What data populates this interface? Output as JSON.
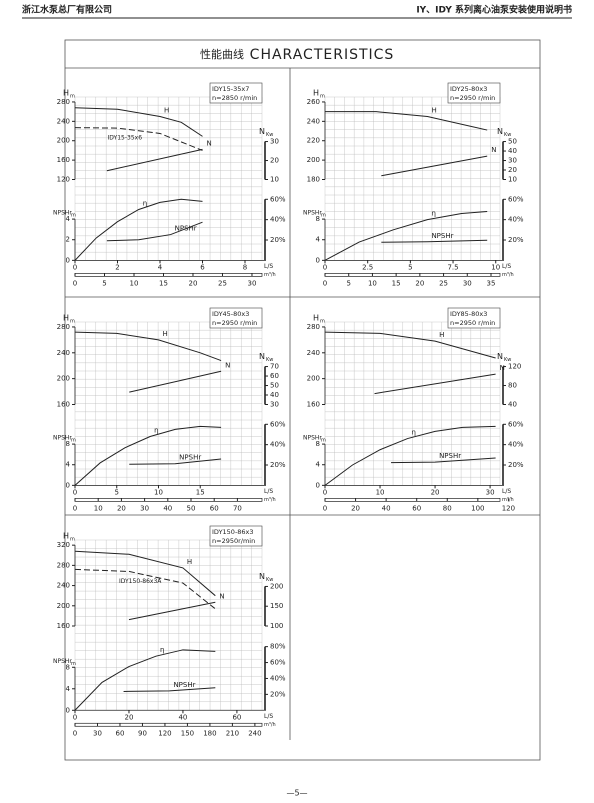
{
  "header": {
    "left": "浙江水泵总厂有限公司",
    "right": "IY、IDY 系列离心油泵安装使用说明书"
  },
  "title": {
    "cn": "性能曲线",
    "en": "CHARACTERISTICS"
  },
  "footer": "—5—",
  "chart_data": [
    {
      "type": "line",
      "model": "IDY15-35x7",
      "speed": "n=2850 r/min",
      "color": "#222",
      "h_title": "H",
      "h_unit": "m",
      "n_title": "N",
      "n_unit": "Kw",
      "npsh_title": "NPSHr",
      "npsh_unit": "m",
      "q_title": "L/S",
      "q2_title": "m³/h",
      "hlim": [
        120,
        280
      ],
      "hticks": [
        120,
        160,
        200,
        240,
        280
      ],
      "nlim": [
        10,
        30
      ],
      "nticks": [
        10,
        20,
        30
      ],
      "etalim": [
        0,
        60
      ],
      "etaticks": [
        {
          "value": 20,
          "label": "20%"
        },
        {
          "value": 40,
          "label": "40%"
        },
        {
          "value": 60,
          "label": "60%"
        }
      ],
      "npshlim": [
        0,
        4
      ],
      "npshticks": [
        0,
        2,
        4
      ],
      "xlim": [
        0,
        8.8
      ],
      "xticks": [
        0,
        2,
        4,
        6,
        8
      ],
      "x2lim": [
        0,
        31.7
      ],
      "x2ticks": [
        0,
        5,
        10,
        15,
        20,
        25,
        30
      ],
      "series": [
        {
          "name": "H",
          "axis": "h",
          "x": [
            0,
            2,
            4,
            5,
            6
          ],
          "values": [
            268,
            265,
            250,
            238,
            209
          ]
        },
        {
          "name": "IDY15-35x6",
          "axis": "h",
          "dashed": true,
          "x": [
            0,
            2,
            4,
            6
          ],
          "values": [
            227,
            226,
            215,
            180
          ]
        },
        {
          "name": "N",
          "axis": "n",
          "x": [
            1.5,
            6
          ],
          "values": [
            14.6,
            25.9
          ]
        },
        {
          "name": "η",
          "axis": "eta",
          "x": [
            0,
            1,
            2,
            3,
            4,
            5,
            6
          ],
          "values": [
            0,
            22,
            38,
            50,
            57,
            60,
            58
          ]
        },
        {
          "name": "NPSHr",
          "axis": "npsh",
          "x": [
            1.5,
            3,
            4.5,
            6
          ],
          "values": [
            1.9,
            2.0,
            2.5,
            3.7
          ]
        }
      ]
    },
    {
      "type": "line",
      "model": "IDY25-80x3",
      "speed": "n=2950 r/min",
      "color": "#222",
      "h_title": "H",
      "h_unit": "m",
      "n_title": "N",
      "n_unit": "Kw",
      "npsh_title": "NPSHr",
      "npsh_unit": "m",
      "q_title": "L/S",
      "q2_title": "m³/h",
      "hlim": [
        180,
        260
      ],
      "hticks": [
        180,
        200,
        220,
        240,
        260
      ],
      "nlim": [
        10,
        50
      ],
      "nticks": [
        10,
        20,
        30,
        40,
        50
      ],
      "etalim": [
        0,
        60
      ],
      "etaticks": [
        {
          "value": 20,
          "label": "20%"
        },
        {
          "value": 40,
          "label": "40%"
        },
        {
          "value": 60,
          "label": "60%"
        }
      ],
      "npshlim": [
        0,
        8
      ],
      "npshticks": [
        0,
        4,
        8
      ],
      "xlim": [
        0,
        10.25
      ],
      "xticks": [
        0,
        2.5,
        5,
        7.5,
        10
      ],
      "x2lim": [
        0,
        36.9
      ],
      "x2ticks": [
        0,
        5,
        10,
        15,
        20,
        25,
        30,
        35
      ],
      "series": [
        {
          "name": "H",
          "axis": "h",
          "x": [
            0,
            3,
            6,
            9.5
          ],
          "values": [
            250,
            250,
            245,
            231
          ]
        },
        {
          "name": "N",
          "axis": "n",
          "x": [
            3.3,
            9.5
          ],
          "values": [
            14,
            34.6
          ]
        },
        {
          "name": "η",
          "axis": "eta",
          "x": [
            0,
            2,
            4,
            6,
            8,
            9.5
          ],
          "values": [
            0,
            18,
            30,
            40,
            46,
            48
          ]
        },
        {
          "name": "NPSHr",
          "axis": "npsh",
          "x": [
            3.3,
            6,
            9.5
          ],
          "values": [
            3.5,
            3.6,
            3.9
          ]
        }
      ]
    },
    {
      "type": "line",
      "model": "IDY45-80x3",
      "speed": "n=2950 r/min",
      "color": "#222",
      "h_title": "H",
      "h_unit": "m",
      "n_title": "N",
      "n_unit": "Kw",
      "npsh_title": "NPSHr",
      "npsh_unit": "m",
      "q_title": "L/S",
      "q2_title": "m³/h",
      "hlim": [
        160,
        280
      ],
      "hticks": [
        160,
        200,
        240,
        280
      ],
      "nlim": [
        30,
        70
      ],
      "nticks": [
        30,
        40,
        50,
        60,
        70
      ],
      "etalim": [
        0,
        60
      ],
      "etaticks": [
        {
          "value": 20,
          "label": "20%"
        },
        {
          "value": 40,
          "label": "40%"
        },
        {
          "value": 60,
          "label": "60%"
        }
      ],
      "npshlim": [
        0,
        8
      ],
      "npshticks": [
        0,
        4,
        8
      ],
      "xlim": [
        0,
        22.4
      ],
      "xticks": [
        0,
        5,
        10,
        15
      ],
      "x2lim": [
        0,
        80.6
      ],
      "x2ticks": [
        0,
        10,
        20,
        30,
        40,
        50,
        60,
        70
      ],
      "series": [
        {
          "name": "H",
          "axis": "h",
          "x": [
            0,
            5,
            10,
            15,
            17.5
          ],
          "values": [
            272,
            270,
            260,
            240,
            228
          ]
        },
        {
          "name": "N",
          "axis": "n",
          "x": [
            6.5,
            17.5
          ],
          "values": [
            43,
            65
          ]
        },
        {
          "name": "η",
          "axis": "eta",
          "x": [
            0,
            3,
            6,
            9,
            12,
            15,
            17.5
          ],
          "values": [
            0,
            22,
            37,
            48,
            55,
            58,
            57
          ]
        },
        {
          "name": "NPSHr",
          "axis": "npsh",
          "x": [
            6.5,
            12,
            17.5
          ],
          "values": [
            4.1,
            4.2,
            5.1
          ]
        }
      ]
    },
    {
      "type": "line",
      "model": "IDY85-80x3",
      "speed": "n=2950 r/min",
      "color": "#222",
      "h_title": "H",
      "h_unit": "m",
      "n_title": "N",
      "n_unit": "Kw",
      "npsh_title": "NPSHr",
      "npsh_unit": "m",
      "q_title": "L/S",
      "q2_title": "m³/h",
      "hlim": [
        160,
        280
      ],
      "hticks": [
        160,
        200,
        240,
        280
      ],
      "nlim": [
        40,
        120
      ],
      "nticks": [
        40,
        80,
        120
      ],
      "etalim": [
        0,
        60
      ],
      "etaticks": [
        {
          "value": 20,
          "label": "20%"
        },
        {
          "value": 40,
          "label": "40%"
        },
        {
          "value": 60,
          "label": "60%"
        }
      ],
      "npshlim": [
        0,
        8
      ],
      "npshticks": [
        0,
        4,
        8
      ],
      "xlim": [
        0,
        31.8
      ],
      "xticks": [
        0,
        10,
        20,
        30
      ],
      "x2lim": [
        0,
        114.5
      ],
      "x2ticks": [
        0,
        20,
        40,
        60,
        80,
        100,
        120
      ],
      "series": [
        {
          "name": "H",
          "axis": "h",
          "x": [
            0,
            10,
            20,
            31
          ],
          "values": [
            272,
            270,
            258,
            232
          ]
        },
        {
          "name": "N",
          "axis": "n",
          "x": [
            9,
            31
          ],
          "values": [
            63,
            104
          ]
        },
        {
          "name": "η",
          "axis": "eta",
          "x": [
            0,
            5,
            10,
            15,
            20,
            25,
            31
          ],
          "values": [
            0,
            20,
            35,
            46,
            53,
            57,
            58
          ]
        },
        {
          "name": "NPSHr",
          "axis": "npsh",
          "x": [
            12,
            20,
            31
          ],
          "values": [
            4.4,
            4.5,
            5.3
          ]
        }
      ]
    },
    {
      "type": "line",
      "model": "IDY150-86x3",
      "speed": "n=2950r/min",
      "color": "#222",
      "h_title": "H",
      "h_unit": "m",
      "n_title": "N",
      "n_unit": "Kw",
      "npsh_title": "NPSHr",
      "npsh_unit": "m",
      "q_title": "L/S",
      "q2_title": "m³/h",
      "hlim": [
        160,
        320
      ],
      "hticks": [
        160,
        200,
        240,
        280,
        320
      ],
      "nlim": [
        100,
        200
      ],
      "nticks": [
        100,
        150,
        200
      ],
      "etalim": [
        0,
        80
      ],
      "etaticks": [
        {
          "value": 20,
          "label": "20%"
        },
        {
          "value": 40,
          "label": "40%"
        },
        {
          "value": 60,
          "label": "60%"
        },
        {
          "value": 80,
          "label": "80%"
        }
      ],
      "npshlim": [
        0,
        8
      ],
      "npshticks": [
        0,
        4,
        8
      ],
      "xlim": [
        0,
        69.3
      ],
      "xticks": [
        0,
        20,
        40,
        60
      ],
      "x2lim": [
        0,
        249.5
      ],
      "x2ticks": [
        0,
        30,
        60,
        90,
        120,
        150,
        180,
        210,
        240
      ],
      "series": [
        {
          "name": "H",
          "axis": "h",
          "x": [
            0,
            20,
            40,
            52
          ],
          "values": [
            308,
            302,
            275,
            220
          ]
        },
        {
          "name": "IDY150-86x3A",
          "axis": "h",
          "dashed": true,
          "x": [
            0,
            20,
            40,
            52
          ],
          "values": [
            272,
            268,
            245,
            194
          ]
        },
        {
          "name": "N",
          "axis": "n",
          "x": [
            20,
            52
          ],
          "values": [
            116,
            160
          ]
        },
        {
          "name": "η",
          "axis": "eta",
          "x": [
            0,
            10,
            20,
            30,
            40,
            52
          ],
          "values": [
            0,
            35,
            55,
            68,
            76,
            74
          ]
        },
        {
          "name": "NPSHr",
          "axis": "npsh",
          "x": [
            18,
            35,
            52
          ],
          "values": [
            3.5,
            3.6,
            4.2
          ]
        }
      ]
    }
  ]
}
